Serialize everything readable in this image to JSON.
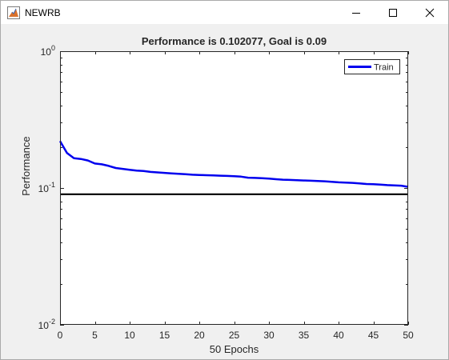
{
  "window": {
    "title": "NEWRB",
    "icons": {
      "app": "matlab-figure-icon",
      "minimize": "minimize-icon",
      "maximize": "maximize-icon",
      "close": "close-icon"
    }
  },
  "chart_data": {
    "type": "line",
    "title": "Performance is 0.102077, Goal is 0.09",
    "xlabel": "50 Epochs",
    "ylabel": "Performance",
    "xlim": [
      0,
      50
    ],
    "ylim": [
      0.01,
      1
    ],
    "yscale": "log",
    "xticks": [
      "0",
      "5",
      "10",
      "15",
      "20",
      "25",
      "30",
      "35",
      "40",
      "45",
      "50"
    ],
    "yticks": [
      {
        "base": "10",
        "exp": "-2",
        "value": 0.01
      },
      {
        "base": "10",
        "exp": "-1",
        "value": 0.1
      },
      {
        "base": "10",
        "exp": "0",
        "value": 1
      }
    ],
    "legend": {
      "position": "top-right",
      "entries": [
        "Train"
      ]
    },
    "series": [
      {
        "name": "Train",
        "color": "#0000ee",
        "x": [
          0,
          1,
          2,
          3,
          4,
          5,
          6,
          7,
          8,
          9,
          10,
          11,
          12,
          13,
          14,
          15,
          16,
          17,
          18,
          19,
          20,
          21,
          22,
          23,
          24,
          25,
          26,
          27,
          28,
          29,
          30,
          31,
          32,
          33,
          34,
          35,
          36,
          37,
          38,
          39,
          40,
          41,
          42,
          43,
          44,
          45,
          46,
          47,
          48,
          49,
          50
        ],
        "y": [
          0.22,
          0.18,
          0.165,
          0.163,
          0.159,
          0.151,
          0.149,
          0.145,
          0.14,
          0.138,
          0.136,
          0.134,
          0.133,
          0.131,
          0.13,
          0.129,
          0.128,
          0.127,
          0.126,
          0.125,
          0.1245,
          0.124,
          0.1235,
          0.123,
          0.1225,
          0.122,
          0.121,
          0.119,
          0.1185,
          0.118,
          0.117,
          0.116,
          0.115,
          0.1145,
          0.114,
          0.1135,
          0.113,
          0.1125,
          0.112,
          0.111,
          0.11,
          0.1095,
          0.109,
          0.108,
          0.107,
          0.1065,
          0.106,
          0.105,
          0.1045,
          0.104,
          0.102077
        ]
      },
      {
        "name": "Goal",
        "color": "#000000",
        "x": [
          0,
          50
        ],
        "y": [
          0.09,
          0.09
        ]
      }
    ]
  }
}
